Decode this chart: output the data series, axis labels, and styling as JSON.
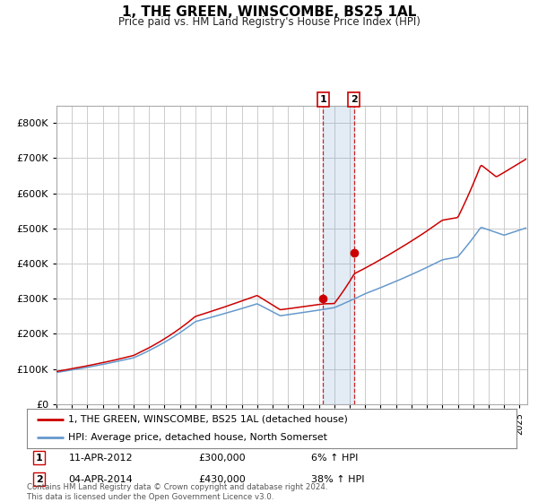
{
  "title": "1, THE GREEN, WINSCOMBE, BS25 1AL",
  "subtitle": "Price paid vs. HM Land Registry's House Price Index (HPI)",
  "legend_line1": "1, THE GREEN, WINSCOMBE, BS25 1AL (detached house)",
  "legend_line2": "HPI: Average price, detached house, North Somerset",
  "footnote": "Contains HM Land Registry data © Crown copyright and database right 2024.\nThis data is licensed under the Open Government Licence v3.0.",
  "transaction1_date": "11-APR-2012",
  "transaction1_price": 300000,
  "transaction1_hpi": "6% ↑ HPI",
  "transaction2_date": "04-APR-2014",
  "transaction2_price": 430000,
  "transaction2_hpi": "38% ↑ HPI",
  "t1_year": 2012.28,
  "t2_year": 2014.26,
  "hpi_color": "#6699cc",
  "price_color": "#cc0000",
  "dot_color": "#cc0000",
  "bg_color": "#ffffff",
  "grid_color": "#cccccc",
  "ylim": [
    0,
    850000
  ],
  "yticks": [
    0,
    100000,
    200000,
    300000,
    400000,
    500000,
    600000,
    700000,
    800000
  ],
  "xlim_start": 1995.0,
  "xlim_end": 2025.5
}
